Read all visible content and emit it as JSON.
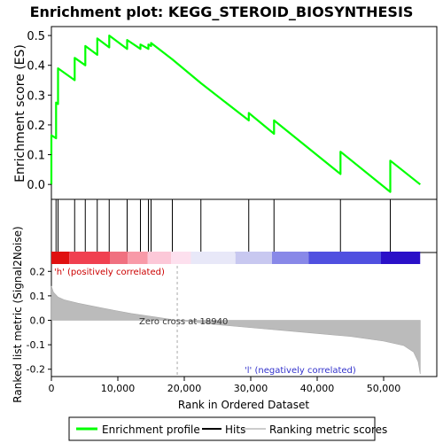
{
  "chart_data": {
    "type": "line",
    "title": "Enrichment plot: KEGG_STEROID_BIOSYNTHESIS",
    "xlabel": "Rank in Ordered Dataset",
    "xlim": [
      0,
      58000
    ],
    "x_ticks": [
      0,
      10000,
      20000,
      30000,
      40000,
      50000
    ],
    "x_tick_labels": [
      "0",
      "10,000",
      "20,000",
      "30,000",
      "40,000",
      "50,000"
    ],
    "dataset_size": 55500,
    "colors": {
      "enrichment_line": "#00ff00",
      "hit_line": "#000000",
      "metric_fill": "#bbbbbb",
      "positive_text": "#cc0000",
      "negative_text": "#3333cc",
      "zero_cross_line": "#aaaaaa"
    },
    "enrichment_panel": {
      "ylabel": "Enrichment score (ES)",
      "ylim": [
        -0.05,
        0.53
      ],
      "y_ticks": [
        0.0,
        0.1,
        0.2,
        0.3,
        0.4,
        0.5
      ],
      "y_tick_labels": [
        "0.0",
        "0.1",
        "0.2",
        "0.3",
        "0.4",
        "0.5"
      ],
      "series": [
        {
          "x": [
            0,
            0,
            700,
            700,
            1000,
            1000,
            3500,
            3500,
            5100,
            5100,
            6900,
            6900,
            8700,
            8700,
            11400,
            11400,
            13400,
            13400,
            14600,
            14600,
            15000,
            15000,
            18200,
            22500,
            29700,
            29700,
            33500,
            33500,
            43500,
            43500,
            51000,
            51000,
            55500
          ],
          "y": [
            0.0,
            0.165,
            0.155,
            0.275,
            0.27,
            0.39,
            0.35,
            0.425,
            0.4,
            0.465,
            0.435,
            0.49,
            0.46,
            0.5,
            0.455,
            0.485,
            0.455,
            0.47,
            0.455,
            0.47,
            0.465,
            0.475,
            0.42,
            0.34,
            0.215,
            0.24,
            0.17,
            0.215,
            0.035,
            0.11,
            -0.025,
            0.08,
            0.0
          ]
        }
      ]
    },
    "hits_panel": {
      "hit_positions": [
        700,
        1000,
        3500,
        5100,
        6900,
        8700,
        11400,
        13400,
        14600,
        15000,
        18200,
        22500,
        29700,
        33500,
        43500,
        51000
      ]
    },
    "color_bar": {
      "segments": [
        {
          "start": 0,
          "end": 2700,
          "color": "#e01010"
        },
        {
          "start": 2700,
          "end": 8800,
          "color": "#f04050"
        },
        {
          "start": 8800,
          "end": 11500,
          "color": "#f07080"
        },
        {
          "start": 11500,
          "end": 14500,
          "color": "#f89aa8"
        },
        {
          "start": 14500,
          "end": 18000,
          "color": "#fcc8d8"
        },
        {
          "start": 18000,
          "end": 21000,
          "color": "#fde0ee"
        },
        {
          "start": 21000,
          "end": 27700,
          "color": "#e8e8f8"
        },
        {
          "start": 27700,
          "end": 33200,
          "color": "#c8c8f0"
        },
        {
          "start": 33200,
          "end": 38700,
          "color": "#8888e8"
        },
        {
          "start": 38700,
          "end": 49600,
          "color": "#5050e0"
        },
        {
          "start": 49600,
          "end": 55500,
          "color": "#2a10c8"
        }
      ]
    },
    "metric_panel": {
      "ylabel": "Ranked list metric (Signal2Noise)",
      "ylim": [
        -0.23,
        0.23
      ],
      "y_ticks": [
        -0.2,
        -0.1,
        0.0,
        0.1,
        0.2
      ],
      "y_tick_labels": [
        "-0.2",
        "-0.1",
        "0.0",
        "0.1",
        "0.2"
      ],
      "x": [
        0,
        300,
        1000,
        2000,
        4000,
        8000,
        12000,
        16000,
        18940,
        25000,
        35000,
        45000,
        50000,
        53000,
        54500,
        55200,
        55500
      ],
      "values": [
        0.14,
        0.115,
        0.095,
        0.083,
        0.07,
        0.048,
        0.028,
        0.012,
        0.0,
        -0.018,
        -0.042,
        -0.066,
        -0.085,
        -0.103,
        -0.13,
        -0.17,
        -0.22
      ],
      "zero_cross": 18940,
      "zero_cross_label": "Zero cross at 18940",
      "positive_label": "'h' (positively correlated)",
      "negative_label": "'l' (negatively correlated)"
    },
    "legend": {
      "placement": "bottom",
      "items": [
        {
          "label": "Enrichment profile",
          "kind": "line-green"
        },
        {
          "label": "Hits",
          "kind": "line-black"
        },
        {
          "label": "Ranking metric scores",
          "kind": "line-gray"
        }
      ]
    }
  }
}
